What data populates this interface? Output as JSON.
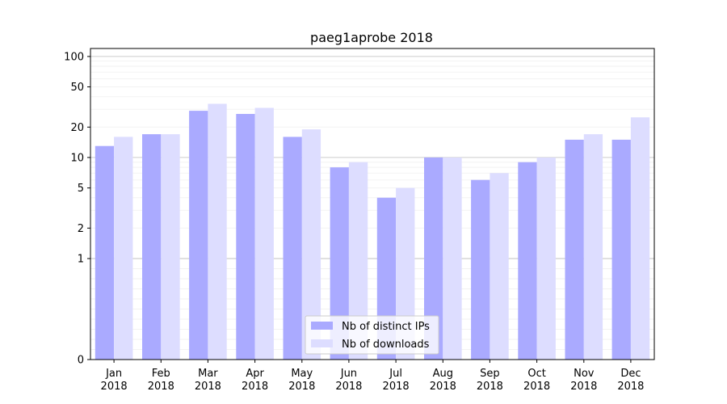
{
  "chart_data": {
    "type": "bar",
    "title": "paeg1aprobe 2018",
    "xlabel": "",
    "ylabel": "",
    "yscale": "symlog",
    "ylim": [
      0,
      120
    ],
    "yticks": [
      0,
      1,
      2,
      5,
      10,
      20,
      50,
      100
    ],
    "categories": [
      [
        "Jan",
        "2018"
      ],
      [
        "Feb",
        "2018"
      ],
      [
        "Mar",
        "2018"
      ],
      [
        "Apr",
        "2018"
      ],
      [
        "May",
        "2018"
      ],
      [
        "Jun",
        "2018"
      ],
      [
        "Jul",
        "2018"
      ],
      [
        "Aug",
        "2018"
      ],
      [
        "Sep",
        "2018"
      ],
      [
        "Oct",
        "2018"
      ],
      [
        "Nov",
        "2018"
      ],
      [
        "Dec",
        "2018"
      ]
    ],
    "series": [
      {
        "name": "Nb of distinct IPs",
        "color": "#aaaaff",
        "values": [
          13,
          17,
          29,
          27,
          16,
          8,
          4,
          10,
          6,
          9,
          15,
          15
        ]
      },
      {
        "name": "Nb of downloads",
        "color": "#ddddff",
        "values": [
          16,
          17,
          34,
          31,
          19,
          9,
          5,
          10,
          7,
          10,
          17,
          25
        ]
      }
    ],
    "grid": true,
    "legend": "bottom-center"
  }
}
